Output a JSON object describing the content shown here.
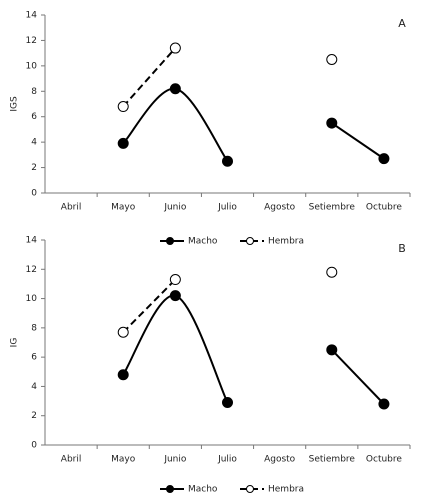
{
  "chart_data": [
    {
      "type": "line",
      "panel": "A",
      "ylabel": "IGS",
      "categories": [
        "Abril",
        "Mayo",
        "Junio",
        "Julio",
        "Agosto",
        "Setiembre",
        "Octubre"
      ],
      "series": [
        {
          "name": "Macho",
          "color": "#000000",
          "values": [
            null,
            3.9,
            8.2,
            2.5,
            null,
            5.5,
            2.7
          ]
        },
        {
          "name": "Hembra",
          "color": "#000000",
          "values": [
            null,
            6.8,
            11.4,
            null,
            null,
            10.5,
            null
          ]
        }
      ],
      "ylim": [
        0,
        14
      ],
      "yticks": [
        0,
        2,
        4,
        6,
        8,
        10,
        12,
        14
      ]
    },
    {
      "type": "line",
      "panel": "B",
      "ylabel": "IG",
      "categories": [
        "Abril",
        "Mayo",
        "Junio",
        "Julio",
        "Agosto",
        "Setiembre",
        "Octubre"
      ],
      "series": [
        {
          "name": "Macho",
          "color": "#000000",
          "values": [
            null,
            4.8,
            10.2,
            2.9,
            null,
            6.5,
            2.8
          ]
        },
        {
          "name": "Hembra",
          "color": "#000000",
          "values": [
            null,
            7.7,
            11.3,
            null,
            null,
            11.8,
            null
          ]
        }
      ],
      "ylim": [
        0,
        14
      ],
      "yticks": [
        0,
        2,
        4,
        6,
        8,
        10,
        12,
        14
      ]
    }
  ]
}
